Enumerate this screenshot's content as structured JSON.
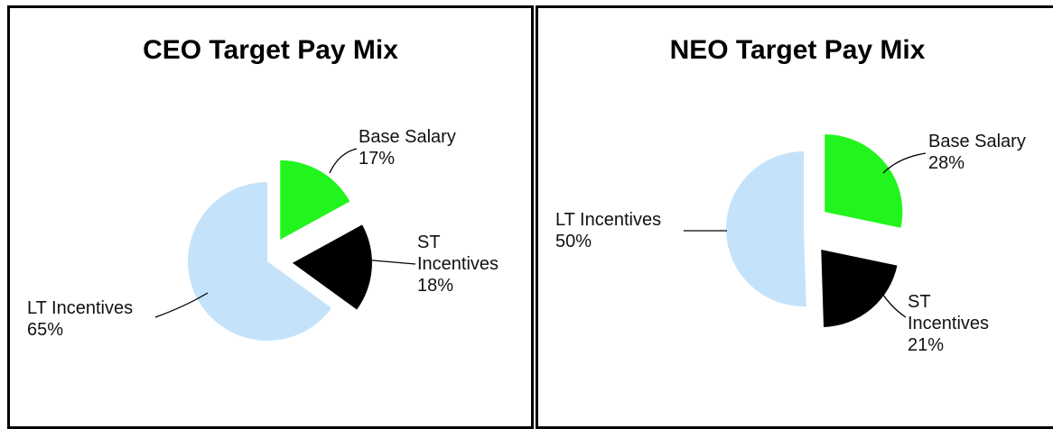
{
  "chart_data": [
    {
      "type": "pie",
      "title": "CEO Target Pay Mix",
      "categories": [
        "Base Salary",
        "ST Incentives",
        "LT Incentives"
      ],
      "values": [
        17,
        18,
        65
      ],
      "value_labels": [
        "17%",
        "18%",
        "65%"
      ],
      "colors": [
        "#22f51e",
        "#000000",
        "#c4e3fb"
      ]
    },
    {
      "type": "pie",
      "title": "NEO Target Pay Mix",
      "categories": [
        "Base Salary",
        "ST Incentives",
        "LT Incentives"
      ],
      "values": [
        28,
        21,
        50
      ],
      "value_labels": [
        "28%",
        "21%",
        "50%"
      ],
      "colors": [
        "#22f51e",
        "#000000",
        "#c4e3fb"
      ]
    }
  ]
}
